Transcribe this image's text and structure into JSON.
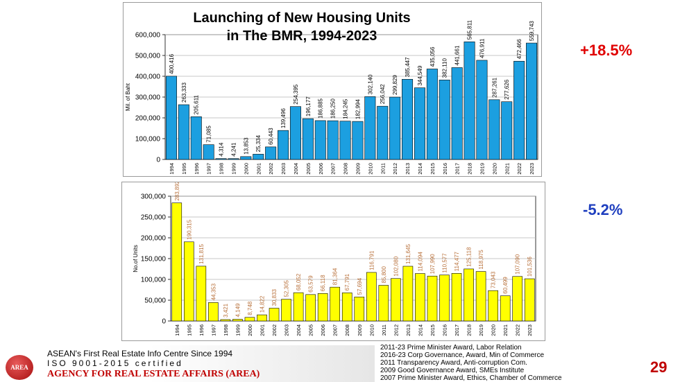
{
  "colors": {
    "top_bar": "#1c9fe0",
    "bottom_bar": "#ffff00",
    "top_label": "#000000",
    "bottom_label": "#b8703a",
    "positive": "#e00000",
    "negative": "#1f3fbf",
    "brand": "#c00000"
  },
  "chart_data": [
    {
      "type": "bar",
      "title_line1": "Launching of New Housing Units",
      "title_line2": "in The BMR, 1994-2023",
      "ylabel": "Mil. of Baht",
      "xlabel": "",
      "ylim": [
        0,
        600000
      ],
      "yticks": [
        0,
        100000,
        200000,
        300000,
        400000,
        500000,
        600000
      ],
      "ytick_labels": [
        "0",
        "100,000",
        "200,000",
        "300,000",
        "400,000",
        "500,000",
        "600,000"
      ],
      "categories": [
        "1994",
        "1995",
        "1996",
        "1997",
        "1998",
        "1999",
        "2000",
        "2001",
        "2002",
        "2003",
        "2004",
        "2005",
        "2006",
        "2007",
        "2008",
        "2009",
        "2010",
        "2011",
        "2012",
        "2013",
        "2014",
        "2015",
        "2016",
        "2017",
        "2018",
        "2019",
        "2020",
        "2021",
        "2022",
        "2023"
      ],
      "values": [
        400416,
        263333,
        205611,
        71085,
        4314,
        4241,
        13853,
        25334,
        60443,
        139496,
        254395,
        196177,
        186885,
        186250,
        184245,
        182994,
        302140,
        256042,
        299829,
        385447,
        344549,
        435056,
        382110,
        441661,
        565811,
        476911,
        287261,
        277626,
        472466,
        559743
      ],
      "data_labels": [
        "400,416",
        "263,333",
        "205,611",
        "71,085",
        "4,314",
        "4,241",
        "13,853",
        "25,334",
        "60,443",
        "139,496",
        "254,395",
        "196,177",
        "186,885",
        "186,250",
        "184,245",
        "182,994",
        "302,140",
        "256,042",
        "299,829",
        "385,447",
        "344,549",
        "435,056",
        "382,110",
        "441,661",
        "565,811",
        "476,911",
        "287,261",
        "277,626",
        "472,466",
        "559,743"
      ],
      "grid": true
    },
    {
      "type": "bar",
      "title": "",
      "ylabel": "No.of Units",
      "xlabel": "",
      "ylim": [
        0,
        300000
      ],
      "yticks": [
        0,
        50000,
        100000,
        150000,
        200000,
        250000,
        300000
      ],
      "ytick_labels": [
        "0",
        "50,000",
        "100,000",
        "150,000",
        "200,000",
        "250,000",
        "300,000"
      ],
      "categories": [
        "1994",
        "1995",
        "1996",
        "1997",
        "1998",
        "1999",
        "2000",
        "2001",
        "2002",
        "2003",
        "2004",
        "2005",
        "2006",
        "2007",
        "2008",
        "2009",
        "2010",
        "2011",
        "2012",
        "2013",
        "2014",
        "2015",
        "2016",
        "2017",
        "2018",
        "2019",
        "2020",
        "2021",
        "2022",
        "2023"
      ],
      "values": [
        283892,
        190315,
        131815,
        44353,
        3421,
        4149,
        8748,
        14822,
        30833,
        52305,
        68052,
        63579,
        66118,
        81364,
        67791,
        57694,
        116791,
        85800,
        102080,
        131645,
        114094,
        107990,
        110577,
        114477,
        125118,
        118975,
        73043,
        60499,
        107090,
        101536
      ],
      "data_labels": [
        "283,892",
        "190,315",
        "131,815",
        "44,353",
        "3,421",
        "4,149",
        "8,748",
        "14,822",
        "30,833",
        "52,305",
        "68,052",
        "63,579",
        "66,118",
        "81,364",
        "67,791",
        "57,694",
        "116,791",
        "85,800",
        "102,080",
        "131,645",
        "114,094",
        "107,990",
        "110,577",
        "114,477",
        "125,118",
        "118,975",
        "73,043",
        "60,499",
        "107,090",
        "101,536"
      ],
      "grid": true
    }
  ],
  "side": {
    "pct_top": "+18.5%",
    "pct_bottom": "-5.2%"
  },
  "footer": {
    "logo_text": "AREA",
    "line1": "ASEAN's First Real Estate Info Centre Since 1994",
    "line2": "ISO 9001-2015 certified",
    "line3": "AGENCY FOR REAL ESTATE AFFAIRS (AREA)",
    "awards": [
      "2011-23 Prime Minister Award, Labor Relation",
      "2016-23 Corp Governance, Award, Min of Commerce",
      "2011 Transparency Award, Anti-corruption Com.",
      "2009 Good Governance Award, SMEs Institute",
      "2007 Prime Minister Award, Ethics, Chamber of Commerce"
    ],
    "page_number": "29"
  }
}
